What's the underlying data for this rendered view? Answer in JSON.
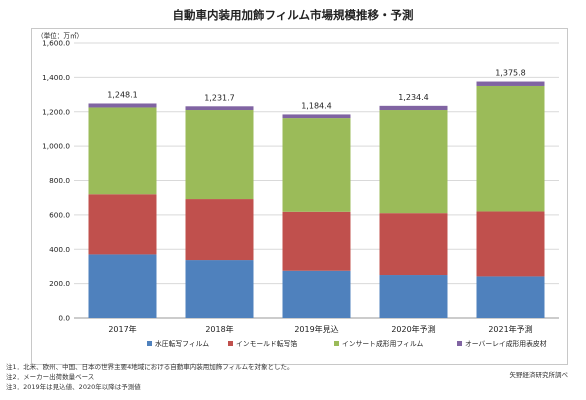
{
  "title": "自動車内装用加飾フィルム市場規模推移・予測",
  "chart_data": {
    "type": "bar",
    "stacked": true,
    "unit_label": "（単位：万㎡）",
    "categories": [
      "2017年",
      "2018年",
      "2019年見込",
      "2020年予測",
      "2021年予測"
    ],
    "series": [
      {
        "name": "水圧転写フィルム",
        "color": "#4f81bd",
        "values": [
          370,
          337,
          275,
          250,
          242
        ]
      },
      {
        "name": "インモールド転写箔",
        "color": "#c0504d",
        "values": [
          350,
          355,
          343,
          360,
          378
        ]
      },
      {
        "name": "インサート成形用フィルム",
        "color": "#9bbb59",
        "values": [
          505,
          518,
          545,
          600,
          730
        ]
      },
      {
        "name": "オーバーレイ成形用表皮材",
        "color": "#8064a2",
        "values": [
          23.1,
          21.7,
          21.4,
          24.4,
          25.8
        ]
      }
    ],
    "totals": [
      "1,248.1",
      "1,231.7",
      "1,184.4",
      "1,234.4",
      "1,375.8"
    ],
    "total_values": [
      1248.1,
      1231.7,
      1184.4,
      1234.4,
      1375.8
    ],
    "yticks": [
      "0.0",
      "200.0",
      "400.0",
      "600.0",
      "800.0",
      "1,000.0",
      "1,200.0",
      "1,400.0",
      "1,600.0"
    ],
    "ylim": [
      0,
      1600
    ],
    "grid": true,
    "legend_position": "bottom"
  },
  "notes": [
    "注1．北米、欧州、中国、日本の世界主要4地域における自動車内装用加飾フィルムを対象とした。",
    "注2．メーカー出荷数量ベース",
    "注3．2019年は見込値、2020年以降は予測値"
  ],
  "source": "矢野経済研究所調べ"
}
